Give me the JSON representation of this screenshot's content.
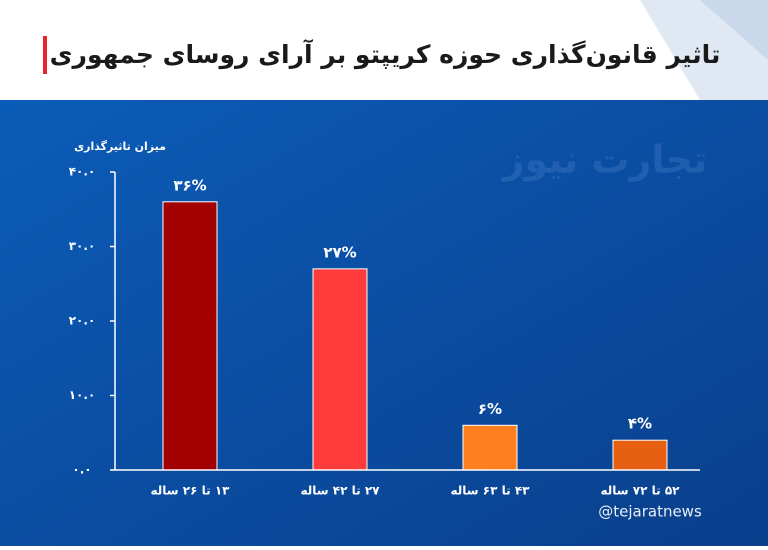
{
  "chart_data": {
    "type": "bar",
    "title": "تاثیر قانون‌گذاری حوزه کریپتو بر آرای روسای جمهوری",
    "y_label": "میزان تاثیرگذاری",
    "watermark": "تجارت نیوز",
    "credit": "@tejaratnews",
    "categories": [
      "۱۳ تا ۲۶ ساله",
      "۲۷ تا ۴۲ ساله",
      "۴۳ تا ۶۳ ساله",
      "۵۲ تا ۷۲ ساله"
    ],
    "values": [
      36,
      27,
      6,
      4
    ],
    "value_labels": [
      "۳۶%",
      "۲۷%",
      "۶%",
      "۴%"
    ],
    "colors": [
      "#a30000",
      "#ff3b3b",
      "#ff7f1f",
      "#e65f12"
    ],
    "ylim": [
      0,
      40
    ],
    "yticks": [
      {
        "value": 0,
        "label": "۰.۰"
      },
      {
        "value": 10,
        "label": "۱۰.۰"
      },
      {
        "value": 20,
        "label": "۲۰.۰"
      },
      {
        "value": 30,
        "label": "۳۰.۰"
      },
      {
        "value": 40,
        "label": "۴۰.۰"
      }
    ]
  }
}
